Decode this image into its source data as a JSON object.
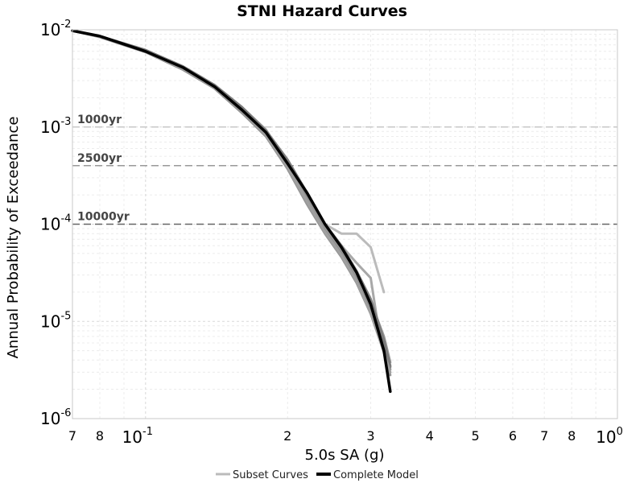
{
  "chart_data": {
    "type": "line",
    "title": "STNI Hazard Curves",
    "xlabel": "5.0s SA (g)",
    "ylabel": "Annual Probability of Exceedance",
    "xscale": "log",
    "yscale": "log",
    "xlim": [
      0.07,
      1.0
    ],
    "ylim": [
      1e-06,
      0.01
    ],
    "grid": true,
    "legend_position": "bottom-center",
    "x_ticks_major": [
      {
        "value": 0.1,
        "base": "10",
        "exp": "-1"
      },
      {
        "value": 1.0,
        "base": "10",
        "exp": "0"
      }
    ],
    "x_ticks_minor": [
      {
        "value": 0.07,
        "label": "7"
      },
      {
        "value": 0.08,
        "label": "8"
      },
      {
        "value": 0.2,
        "label": "2"
      },
      {
        "value": 0.3,
        "label": "3"
      },
      {
        "value": 0.4,
        "label": "4"
      },
      {
        "value": 0.5,
        "label": "5"
      },
      {
        "value": 0.6,
        "label": "6"
      },
      {
        "value": 0.7,
        "label": "7"
      },
      {
        "value": 0.8,
        "label": "8"
      }
    ],
    "y_ticks": [
      {
        "value": 0.01,
        "base": "10",
        "exp": "-2"
      },
      {
        "value": 0.001,
        "base": "10",
        "exp": "-3"
      },
      {
        "value": 0.0001,
        "base": "10",
        "exp": "-4"
      },
      {
        "value": 1e-05,
        "base": "10",
        "exp": "-5"
      },
      {
        "value": 1e-06,
        "base": "10",
        "exp": "-6"
      }
    ],
    "return_periods": [
      {
        "label": "1000yr",
        "y": 0.001,
        "color": "#c8c8c8"
      },
      {
        "label": "2500yr",
        "y": 0.0004,
        "color": "#999999"
      },
      {
        "label": "10000yr",
        "y": 0.0001,
        "color": "#666666"
      }
    ],
    "series": [
      {
        "name": "Subset Curves",
        "color": "#bbbbbb",
        "x": [
          0.07,
          0.08,
          0.1,
          0.12,
          0.14,
          0.16,
          0.18,
          0.2,
          0.22,
          0.24,
          0.26,
          0.28,
          0.3,
          0.32
        ],
        "y": [
          0.0098,
          0.0085,
          0.006,
          0.0041,
          0.0027,
          0.0016,
          0.00094,
          0.00042,
          0.0002,
          0.0001,
          8e-05,
          8e-05,
          5.8e-05,
          2e-05
        ]
      },
      {
        "x": [
          0.07,
          0.08,
          0.1,
          0.12,
          0.14,
          0.16,
          0.18,
          0.2,
          0.22,
          0.24,
          0.26,
          0.28,
          0.3,
          0.31
        ],
        "y": [
          0.0098,
          0.0085,
          0.006,
          0.0041,
          0.0026,
          0.0015,
          0.0009,
          0.00042,
          0.00019,
          0.0001,
          6e-05,
          4e-05,
          2.8e-05,
          1e-05
        ]
      },
      {
        "x": [
          0.07,
          0.08,
          0.1,
          0.12,
          0.14,
          0.16,
          0.18,
          0.2,
          0.22,
          0.24,
          0.26,
          0.28,
          0.3,
          0.32,
          0.33
        ],
        "y": [
          0.0098,
          0.0085,
          0.006,
          0.004,
          0.0026,
          0.0015,
          0.00085,
          0.0004,
          0.00018,
          9e-05,
          5.5e-05,
          3e-05,
          1.6e-05,
          7e-06,
          3.8e-06
        ]
      },
      {
        "x": [
          0.07,
          0.08,
          0.1,
          0.12,
          0.14,
          0.16,
          0.18,
          0.2,
          0.22,
          0.24,
          0.26,
          0.28,
          0.3,
          0.32,
          0.33
        ],
        "y": [
          0.0098,
          0.0085,
          0.0059,
          0.0039,
          0.0025,
          0.0014,
          0.00082,
          0.00038,
          0.00017,
          8.5e-05,
          5e-05,
          2.7e-05,
          1.3e-05,
          5.5e-06,
          3.2e-06
        ]
      },
      {
        "x": [
          0.07,
          0.08,
          0.1,
          0.12,
          0.14,
          0.16,
          0.18,
          0.2,
          0.22,
          0.24,
          0.26,
          0.28,
          0.3,
          0.32,
          0.33
        ],
        "y": [
          0.0098,
          0.0085,
          0.0061,
          0.0042,
          0.0027,
          0.0016,
          0.0009,
          0.00045,
          0.0002,
          0.0001,
          6e-05,
          3.3e-05,
          1.7e-05,
          6.5e-06,
          3.5e-06
        ]
      },
      {
        "x": [
          0.07,
          0.08,
          0.1,
          0.12,
          0.14,
          0.16,
          0.18,
          0.2,
          0.22,
          0.24,
          0.26,
          0.28,
          0.3,
          0.32,
          0.33
        ],
        "y": [
          0.0098,
          0.0084,
          0.0059,
          0.0039,
          0.0025,
          0.0014,
          0.0008,
          0.00037,
          0.00016,
          8e-05,
          4.6e-05,
          2.5e-05,
          1.2e-05,
          5e-06,
          2.8e-06
        ]
      },
      {
        "x": [
          0.07,
          0.08,
          0.1,
          0.12,
          0.14,
          0.16,
          0.18,
          0.2,
          0.22,
          0.24,
          0.26,
          0.28,
          0.3,
          0.32,
          0.33
        ],
        "y": [
          0.0098,
          0.0086,
          0.0062,
          0.0042,
          0.0027,
          0.0016,
          0.00092,
          0.00046,
          0.00021,
          0.0001,
          6e-05,
          3.2e-05,
          1.6e-05,
          6.2e-06,
          3.4e-06
        ]
      },
      {
        "x": [
          0.07,
          0.08,
          0.1,
          0.12,
          0.14,
          0.16,
          0.18,
          0.2,
          0.22,
          0.24,
          0.26,
          0.28,
          0.3,
          0.32,
          0.33
        ],
        "y": [
          0.0098,
          0.0085,
          0.006,
          0.004,
          0.0026,
          0.0015,
          0.00083,
          0.00039,
          0.00017,
          8.3e-05,
          4.8e-05,
          2.6e-05,
          1.2e-05,
          4.8e-06,
          3e-06
        ]
      },
      {
        "name": "Complete Model",
        "color": "#000000",
        "x": [
          0.07,
          0.08,
          0.1,
          0.12,
          0.14,
          0.16,
          0.18,
          0.2,
          0.22,
          0.24,
          0.26,
          0.28,
          0.3,
          0.32,
          0.33
        ],
        "y": [
          0.0098,
          0.0086,
          0.006,
          0.0041,
          0.0026,
          0.0015,
          0.00088,
          0.00042,
          0.00021,
          0.0001,
          5.8e-05,
          3.2e-05,
          1.5e-05,
          5e-06,
          1.9e-06
        ]
      }
    ]
  }
}
